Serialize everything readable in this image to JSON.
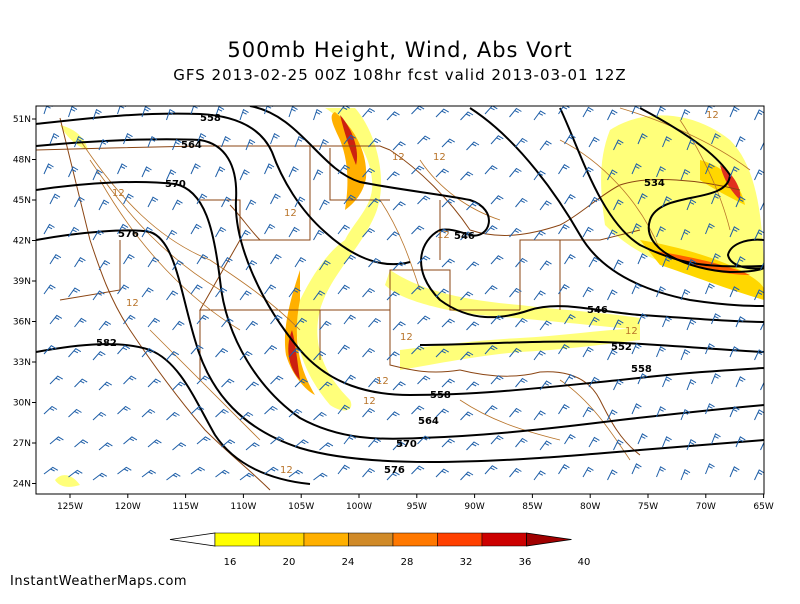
{
  "title": "500mb  Height, Wind, Abs Vort",
  "subtitle": "GFS 2013-02-25 00Z 108hr fcst valid 2013-03-01 12Z",
  "credit": "InstantWeatherMaps.com",
  "lat_labels": [
    "51N",
    "48N",
    "45N",
    "42N",
    "39N",
    "36N",
    "33N",
    "30N",
    "27N",
    "24N"
  ],
  "lon_labels": [
    "125W",
    "120W",
    "115W",
    "110W",
    "105W",
    "100W",
    "95W",
    "90W",
    "85W",
    "80W",
    "75W",
    "70W",
    "65W"
  ],
  "height_labels": [
    "534",
    "546",
    "546",
    "552",
    "558",
    "558",
    "558",
    "564",
    "564",
    "570",
    "570",
    "576",
    "576",
    "582"
  ],
  "vort_label": "12",
  "colorbar": {
    "ticks": [
      "16",
      "20",
      "24",
      "28",
      "32",
      "36",
      "40"
    ],
    "colors": [
      "#ffff00",
      "#ffd700",
      "#ffb000",
      "#d08a28",
      "#ff7800",
      "#ff4000",
      "#cc0000"
    ]
  },
  "colors": {
    "contour": "#000000",
    "border": "#8b4513",
    "wind_barb": "#1f5fa8",
    "vort_low": "#fff4b0",
    "vort_mid": "#ffd700",
    "vort_high": "#e0301e"
  }
}
